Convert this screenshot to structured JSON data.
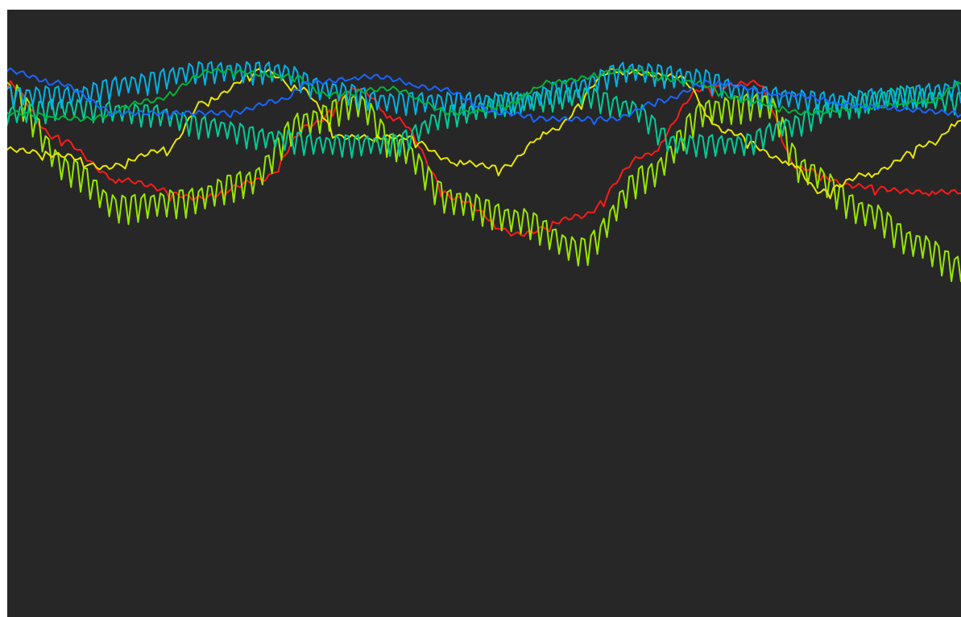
{
  "chart_data": {
    "type": "line",
    "title": "",
    "xlabel": "",
    "ylabel": "",
    "grid": false,
    "legend": "none",
    "axes_visible": false,
    "background": "#272727",
    "ylim": [
      0,
      1
    ],
    "x_count": 300,
    "series": [
      {
        "color": "#ff1a1a",
        "base": 0.4,
        "amplitude": 0.16,
        "phase": 1.5,
        "spike_depth": 0.01,
        "spike_every": 17,
        "points": [
          [
            0,
            0.88
          ],
          [
            15,
            0.79
          ],
          [
            35,
            0.72
          ],
          [
            60,
            0.69
          ],
          [
            80,
            0.72
          ],
          [
            95,
            0.81
          ],
          [
            110,
            0.87
          ],
          [
            122,
            0.82
          ],
          [
            140,
            0.69
          ],
          [
            160,
            0.63
          ],
          [
            180,
            0.66
          ],
          [
            200,
            0.76
          ],
          [
            218,
            0.87
          ],
          [
            235,
            0.88
          ],
          [
            248,
            0.74
          ],
          [
            265,
            0.71
          ],
          [
            285,
            0.7
          ],
          [
            299,
            0.7
          ]
        ]
      },
      {
        "color": "#99e600",
        "spike_depth": 0.04,
        "spike_every": 3,
        "points": [
          [
            0,
            0.88
          ],
          [
            20,
            0.75
          ],
          [
            35,
            0.69
          ],
          [
            55,
            0.7
          ],
          [
            75,
            0.73
          ],
          [
            93,
            0.83
          ],
          [
            110,
            0.86
          ],
          [
            122,
            0.79
          ],
          [
            140,
            0.7
          ],
          [
            160,
            0.67
          ],
          [
            180,
            0.62
          ],
          [
            200,
            0.74
          ],
          [
            220,
            0.85
          ],
          [
            238,
            0.86
          ],
          [
            250,
            0.75
          ],
          [
            270,
            0.68
          ],
          [
            285,
            0.63
          ],
          [
            299,
            0.59
          ]
        ]
      },
      {
        "color": "#e6e600",
        "spike_depth": 0.01,
        "spike_every": 13,
        "points": [
          [
            0,
            0.77
          ],
          [
            18,
            0.76
          ],
          [
            30,
            0.74
          ],
          [
            50,
            0.77
          ],
          [
            62,
            0.85
          ],
          [
            80,
            0.9
          ],
          [
            92,
            0.87
          ],
          [
            105,
            0.79
          ],
          [
            125,
            0.79
          ],
          [
            140,
            0.75
          ],
          [
            155,
            0.74
          ],
          [
            170,
            0.8
          ],
          [
            190,
            0.9
          ],
          [
            210,
            0.89
          ],
          [
            225,
            0.8
          ],
          [
            245,
            0.75
          ],
          [
            255,
            0.7
          ],
          [
            270,
            0.73
          ],
          [
            290,
            0.78
          ],
          [
            299,
            0.82
          ]
        ]
      },
      {
        "color": "#00cc99",
        "spike_depth": 0.03,
        "spike_every": 3,
        "points": [
          [
            0,
            0.84
          ],
          [
            20,
            0.85
          ],
          [
            45,
            0.84
          ],
          [
            62,
            0.82
          ],
          [
            82,
            0.8
          ],
          [
            100,
            0.79
          ],
          [
            120,
            0.79
          ],
          [
            140,
            0.84
          ],
          [
            160,
            0.86
          ],
          [
            180,
            0.87
          ],
          [
            195,
            0.85
          ],
          [
            210,
            0.79
          ],
          [
            230,
            0.79
          ],
          [
            245,
            0.82
          ],
          [
            260,
            0.85
          ],
          [
            280,
            0.87
          ],
          [
            299,
            0.86
          ]
        ]
      },
      {
        "color": "#00b3e6",
        "spike_depth": 0.03,
        "spike_every": 3,
        "points": [
          [
            0,
            0.87
          ],
          [
            20,
            0.87
          ],
          [
            40,
            0.89
          ],
          [
            60,
            0.91
          ],
          [
            85,
            0.91
          ],
          [
            100,
            0.88
          ],
          [
            120,
            0.86
          ],
          [
            140,
            0.86
          ],
          [
            160,
            0.86
          ],
          [
            175,
            0.88
          ],
          [
            195,
            0.91
          ],
          [
            215,
            0.9
          ],
          [
            235,
            0.87
          ],
          [
            260,
            0.86
          ],
          [
            280,
            0.87
          ],
          [
            299,
            0.88
          ]
        ]
      },
      {
        "color": "#00b33c",
        "spike_depth": 0.005,
        "spike_every": 19,
        "points": [
          [
            0,
            0.83
          ],
          [
            25,
            0.82
          ],
          [
            45,
            0.85
          ],
          [
            65,
            0.9
          ],
          [
            90,
            0.89
          ],
          [
            100,
            0.86
          ],
          [
            120,
            0.87
          ],
          [
            140,
            0.83
          ],
          [
            155,
            0.84
          ],
          [
            170,
            0.88
          ],
          [
            195,
            0.9
          ],
          [
            215,
            0.88
          ],
          [
            232,
            0.85
          ],
          [
            250,
            0.83
          ],
          [
            270,
            0.84
          ],
          [
            290,
            0.85
          ],
          [
            299,
            0.88
          ]
        ]
      },
      {
        "color": "#1a66ff",
        "spike_depth": 0.005,
        "spike_every": 19,
        "points": [
          [
            0,
            0.9
          ],
          [
            15,
            0.88
          ],
          [
            35,
            0.83
          ],
          [
            50,
            0.83
          ],
          [
            70,
            0.83
          ],
          [
            85,
            0.85
          ],
          [
            95,
            0.88
          ],
          [
            115,
            0.89
          ],
          [
            135,
            0.87
          ],
          [
            155,
            0.83
          ],
          [
            170,
            0.82
          ],
          [
            190,
            0.82
          ],
          [
            205,
            0.85
          ],
          [
            220,
            0.88
          ],
          [
            245,
            0.86
          ],
          [
            270,
            0.84
          ],
          [
            299,
            0.83
          ]
        ]
      }
    ]
  }
}
